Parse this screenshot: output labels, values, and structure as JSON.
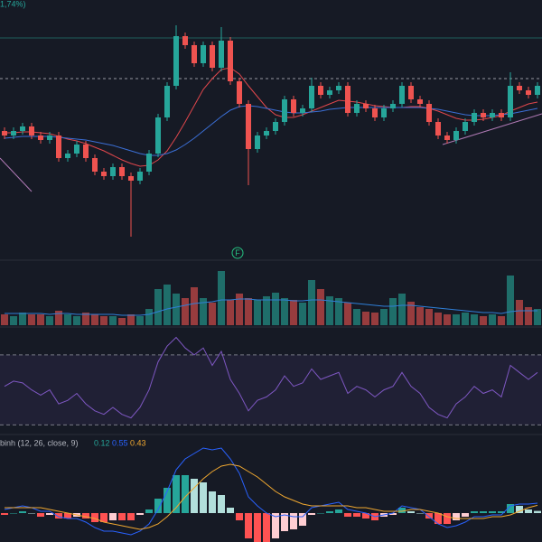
{
  "chart_data": {
    "type": "candlestick",
    "change_label": "1,74%)",
    "marker_label": "F",
    "ylim": [
      0,
      285
    ],
    "colors": {
      "up": "#26a69a",
      "down": "#ef5350"
    },
    "open": [
      140,
      135,
      140,
      145,
      135,
      130,
      135,
      110,
      115,
      125,
      110,
      95,
      90,
      100,
      90,
      85,
      95,
      115,
      155,
      190,
      245,
      235,
      215,
      235,
      210,
      240,
      195,
      170,
      120,
      135,
      140,
      150,
      175,
      160,
      165,
      190,
      180,
      185,
      190,
      160,
      170,
      165,
      155,
      165,
      170,
      190,
      175,
      170,
      150,
      135,
      130,
      140,
      150,
      160,
      155,
      160,
      155,
      190,
      185,
      180
    ],
    "high": [
      144,
      144,
      149,
      149,
      139,
      139,
      139,
      119,
      129,
      129,
      114,
      99,
      104,
      104,
      94,
      99,
      119,
      159,
      194,
      257,
      249,
      239,
      239,
      239,
      255,
      244,
      199,
      174,
      139,
      144,
      154,
      179,
      179,
      169,
      199,
      194,
      189,
      194,
      194,
      174,
      174,
      169,
      169,
      174,
      194,
      194,
      179,
      174,
      154,
      139,
      144,
      154,
      164,
      164,
      164,
      164,
      205,
      194,
      189,
      194
    ],
    "low": [
      131,
      131,
      136,
      131,
      126,
      126,
      106,
      106,
      111,
      106,
      91,
      86,
      86,
      86,
      23,
      81,
      91,
      111,
      151,
      186,
      231,
      211,
      211,
      206,
      206,
      191,
      166,
      80,
      116,
      131,
      136,
      146,
      156,
      156,
      161,
      176,
      176,
      181,
      156,
      156,
      161,
      151,
      151,
      161,
      166,
      171,
      166,
      146,
      131,
      126,
      126,
      136,
      146,
      151,
      151,
      151,
      151,
      181,
      176,
      176
    ],
    "close": [
      135,
      140,
      145,
      135,
      130,
      135,
      110,
      115,
      125,
      110,
      95,
      90,
      100,
      90,
      85,
      95,
      115,
      155,
      190,
      245,
      235,
      215,
      235,
      210,
      240,
      195,
      170,
      120,
      135,
      140,
      150,
      175,
      160,
      165,
      190,
      180,
      185,
      190,
      160,
      170,
      165,
      155,
      165,
      170,
      190,
      175,
      170,
      150,
      135,
      130,
      140,
      150,
      160,
      155,
      160,
      155,
      190,
      185,
      180,
      190
    ],
    "levels": [
      198,
      243
    ],
    "moving_averages": [
      {
        "color": "#e0474c",
        "values": [
          138,
          138,
          139,
          139,
          138,
          137,
          134,
          131,
          129,
          126,
          122,
          118,
          113,
          108,
          104,
          101,
          102,
          108,
          118,
          133,
          150,
          168,
          186,
          198,
          208,
          210,
          203,
          190,
          178,
          166,
          158,
          155,
          155,
          158,
          162,
          166,
          170,
          174,
          173,
          172,
          170,
          168,
          167,
          166,
          166,
          167,
          167,
          165,
          162,
          158,
          154,
          152,
          152,
          153,
          155,
          157,
          162,
          166,
          170,
          172
        ]
      },
      {
        "color": "#3b6fd6",
        "values": [
          132,
          133,
          134,
          134,
          134,
          134,
          133,
          132,
          131,
          130,
          128,
          126,
          124,
          121,
          118,
          115,
          113,
          113,
          115,
          119,
          125,
          132,
          140,
          148,
          156,
          163,
          167,
          168,
          167,
          165,
          163,
          161,
          160,
          160,
          161,
          162,
          164,
          165,
          166,
          166,
          166,
          166,
          166,
          166,
          166,
          166,
          166,
          165,
          164,
          162,
          160,
          158,
          157,
          157,
          157,
          158,
          159,
          161,
          163,
          165
        ]
      }
    ],
    "volume": {
      "ylim": [
        0,
        70
      ],
      "values": [
        12,
        10,
        14,
        12,
        12,
        10,
        16,
        12,
        10,
        14,
        12,
        10,
        10,
        8,
        12,
        10,
        18,
        40,
        45,
        35,
        30,
        42,
        30,
        25,
        60,
        28,
        35,
        30,
        28,
        32,
        36,
        30,
        28,
        25,
        50,
        40,
        32,
        30,
        25,
        18,
        15,
        14,
        18,
        30,
        35,
        26,
        20,
        18,
        14,
        12,
        12,
        14,
        12,
        10,
        12,
        10,
        55,
        28,
        20,
        18
      ],
      "ma": {
        "color": "#2f7fd8",
        "values": [
          13,
          13,
          13,
          13,
          13,
          12,
          13,
          13,
          12,
          12,
          12,
          12,
          12,
          11,
          11,
          11,
          12,
          15,
          18,
          20,
          22,
          24,
          25,
          26,
          28,
          28,
          29,
          29,
          28,
          28,
          28,
          28,
          27,
          27,
          28,
          28,
          27,
          26,
          25,
          24,
          23,
          22,
          21,
          21,
          22,
          22,
          21,
          20,
          19,
          18,
          17,
          16,
          15,
          14,
          14,
          13,
          15,
          16,
          16,
          16
        ]
      }
    },
    "rsi": {
      "ylim": [
        25,
        87
      ],
      "bands": [
        70,
        30
      ],
      "color": "#7e57c2",
      "values": [
        52,
        55,
        54,
        50,
        47,
        50,
        42,
        44,
        48,
        42,
        38,
        36,
        40,
        36,
        34,
        40,
        50,
        66,
        75,
        80,
        74,
        70,
        74,
        64,
        72,
        56,
        48,
        38,
        44,
        46,
        50,
        58,
        52,
        54,
        62,
        56,
        58,
        60,
        48,
        52,
        50,
        46,
        50,
        52,
        60,
        52,
        48,
        40,
        36,
        34,
        42,
        46,
        52,
        48,
        50,
        46,
        64,
        60,
        56,
        60
      ]
    },
    "macd": {
      "title": "binh (12, 26, close, 9)",
      "ylim": [
        -1.6,
        4.3
      ],
      "histogram": {
        "color": "#26a69a",
        "values": [
          -0.1,
          0,
          0.1,
          0,
          -0.2,
          -0.1,
          -0.3,
          -0.3,
          -0.2,
          -0.3,
          -0.5,
          -0.5,
          -0.4,
          -0.4,
          -0.4,
          -0.1,
          0.2,
          0.8,
          1.4,
          2.1,
          2.1,
          1.9,
          1.7,
          1.2,
          1.0,
          0.3,
          -0.4,
          -1.4,
          -1.6,
          -1.6,
          -1.4,
          -1.0,
          -0.9,
          -0.7,
          -0.1,
          0,
          0.1,
          0.2,
          -0.2,
          -0.2,
          -0.3,
          -0.4,
          -0.2,
          -0.1,
          0.3,
          0.1,
          0,
          -0.3,
          -0.6,
          -0.6,
          -0.4,
          -0.2,
          0.1,
          0.1,
          0.1,
          0.1,
          0.5,
          0.4,
          0.2,
          0.12
        ]
      },
      "macd": {
        "color": "#2962ff",
        "values": [
          0.2,
          0.3,
          0.4,
          0.3,
          0.1,
          0.1,
          -0.2,
          -0.3,
          -0.3,
          -0.5,
          -0.8,
          -1.0,
          -1.0,
          -1.1,
          -1.2,
          -1.0,
          -0.6,
          0.2,
          1.2,
          2.4,
          3.0,
          3.3,
          3.6,
          3.5,
          3.6,
          3.0,
          2.2,
          0.9,
          0.4,
          0.0,
          -0.2,
          -0.1,
          -0.2,
          -0.2,
          0.3,
          0.4,
          0.5,
          0.6,
          0.2,
          0.1,
          0.0,
          -0.2,
          -0.1,
          0.0,
          0.4,
          0.3,
          0.2,
          -0.2,
          -0.6,
          -0.8,
          -0.7,
          -0.5,
          -0.2,
          -0.2,
          -0.1,
          -0.1,
          0.4,
          0.5,
          0.5,
          0.55
        ]
      },
      "signal": {
        "color": "#f0a830",
        "values": [
          0.3,
          0.3,
          0.3,
          0.3,
          0.3,
          0.2,
          0.1,
          0.0,
          -0.1,
          -0.2,
          -0.3,
          -0.5,
          -0.6,
          -0.7,
          -0.8,
          -0.9,
          -0.8,
          -0.6,
          -0.2,
          0.3,
          0.9,
          1.4,
          1.9,
          2.3,
          2.6,
          2.7,
          2.6,
          2.3,
          2.0,
          1.6,
          1.2,
          0.9,
          0.7,
          0.5,
          0.4,
          0.4,
          0.4,
          0.4,
          0.4,
          0.3,
          0.3,
          0.2,
          0.1,
          0.1,
          0.1,
          0.2,
          0.2,
          0.1,
          0.0,
          -0.2,
          -0.3,
          -0.3,
          -0.3,
          -0.3,
          -0.2,
          -0.2,
          -0.1,
          0.1,
          0.3,
          0.43
        ]
      }
    }
  }
}
